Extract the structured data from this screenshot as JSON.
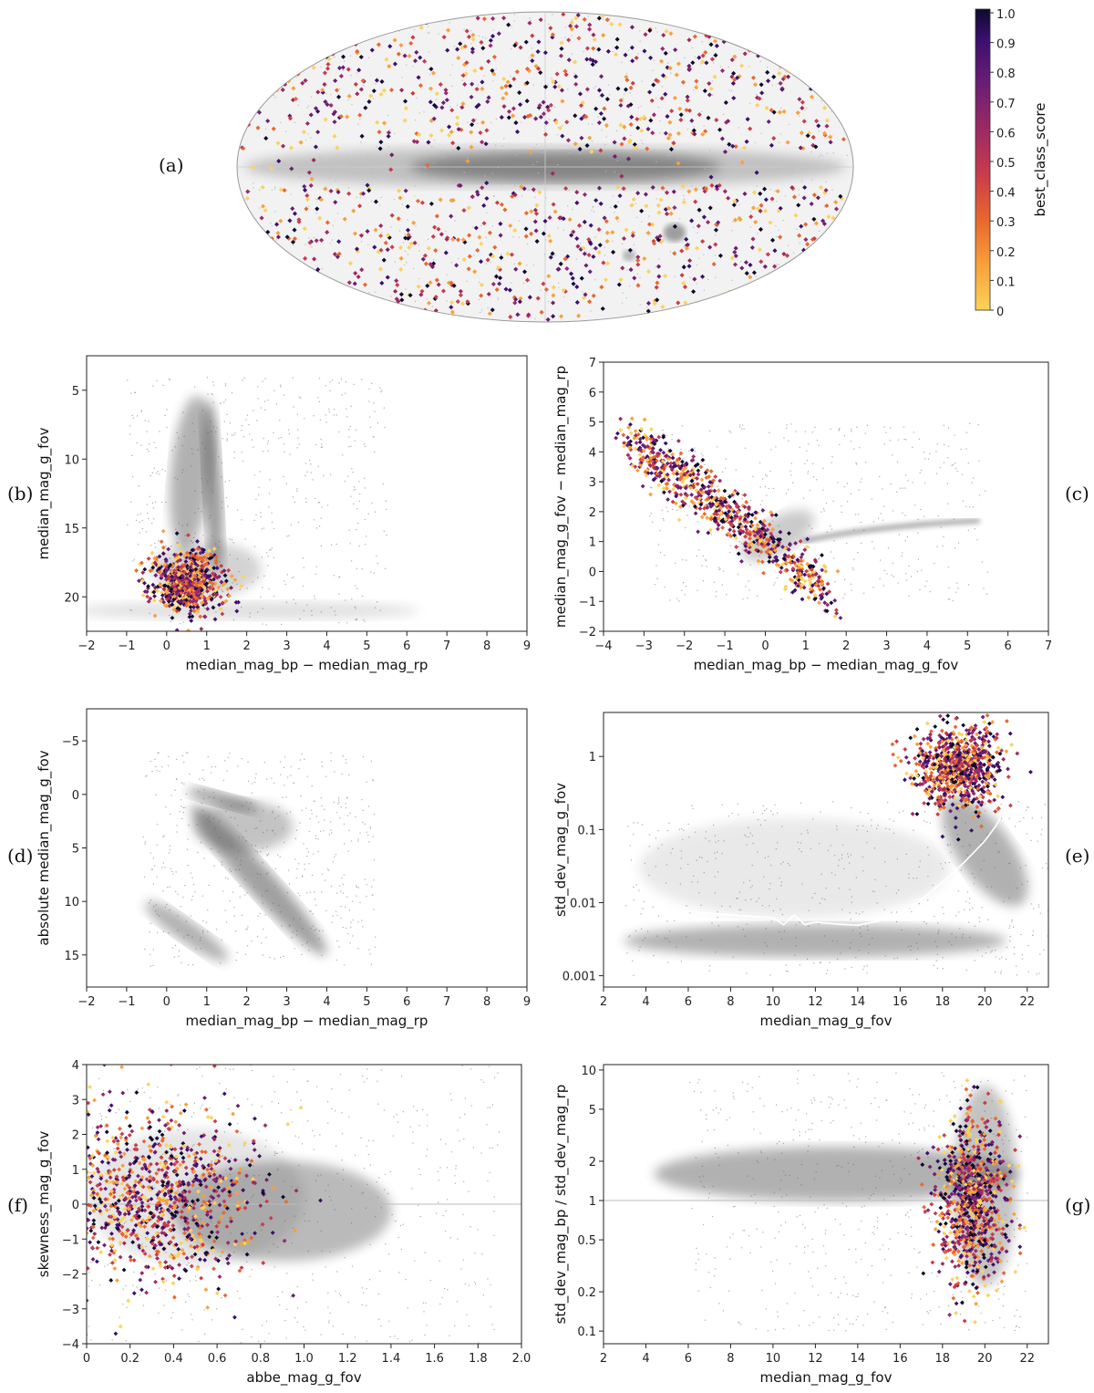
{
  "figure": {
    "panels": [
      {
        "id": "a",
        "label": "(a)"
      },
      {
        "id": "b",
        "label": "(b)"
      },
      {
        "id": "c",
        "label": "(c)"
      },
      {
        "id": "d",
        "label": "(d)"
      },
      {
        "id": "e",
        "label": "(e)"
      },
      {
        "id": "f",
        "label": "(f)"
      },
      {
        "id": "g",
        "label": "(g)"
      }
    ]
  },
  "chart_data": [
    {
      "panel": "a",
      "type": "scatter",
      "title": "",
      "projection": "mollweide all-sky",
      "colorbar": {
        "label": "best_class_score",
        "ticks": [
          "1.0",
          "0.9",
          "0.8",
          "0.7",
          "0.6",
          "0.5",
          "0.4",
          "0.3",
          "0.2",
          "0.1",
          "0"
        ],
        "range": [
          0,
          1
        ]
      },
      "background": "grey density of all sources (Milky Way band)",
      "series": [
        {
          "name": "candidates",
          "color_by": "best_class_score"
        }
      ]
    },
    {
      "panel": "b",
      "type": "scatter",
      "xlabel": "median_mag_bp − median_mag_rp",
      "ylabel": "median_mag_g_fov",
      "xlim": [
        -2,
        9
      ],
      "ylim": [
        22.5,
        2.5
      ],
      "xticks": [
        -2,
        -1,
        0,
        1,
        2,
        3,
        4,
        5,
        6,
        7,
        8,
        9
      ],
      "yticks": [
        5,
        10,
        15,
        20
      ],
      "series": [
        {
          "name": "candidates",
          "cluster": {
            "x": [
              -1,
              2
            ],
            "y": [
              15.5,
              21.5
            ]
          }
        }
      ]
    },
    {
      "panel": "c",
      "type": "scatter",
      "xlabel": "median_mag_bp − median_mag_g_fov",
      "ylabel": "median_mag_g_fov − median_mag_rp",
      "xlim": [
        -4,
        7
      ],
      "ylim": [
        -2,
        7
      ],
      "xticks": [
        -4,
        -3,
        -2,
        -1,
        0,
        1,
        2,
        3,
        4,
        5,
        6,
        7
      ],
      "yticks": [
        -2,
        -1,
        0,
        1,
        2,
        3,
        4,
        5,
        6,
        7
      ],
      "series": [
        {
          "name": "candidates",
          "trend": "anti-correlated band from (-3.3,4.3) to (1.5,-0.5)"
        }
      ]
    },
    {
      "panel": "d",
      "type": "scatter",
      "xlabel": "median_mag_bp − median_mag_rp",
      "ylabel": "absolute median_mag_g_fov",
      "xlim": [
        -2,
        9
      ],
      "ylim": [
        18,
        -8
      ],
      "xticks": [
        -2,
        -1,
        0,
        1,
        2,
        3,
        4,
        5,
        6,
        7,
        8,
        9
      ],
      "yticks": [
        -5,
        0,
        5,
        10,
        15
      ],
      "series": [
        {
          "name": "all sources",
          "note": "Hertzsprung-Russell diagram, grey density only"
        }
      ]
    },
    {
      "panel": "e",
      "type": "scatter",
      "xlabel": "median_mag_g_fov",
      "ylabel": "std_dev_mag_g_fov",
      "yscale": "log",
      "xlim": [
        2,
        23
      ],
      "ylim": [
        0.0007,
        4
      ],
      "xticks": [
        2,
        4,
        6,
        8,
        10,
        12,
        14,
        16,
        18,
        20,
        22
      ],
      "yticks": [
        "0.001",
        "0.01",
        "0.1",
        "1"
      ],
      "median_curve": {
        "x": [
          6,
          8,
          10,
          10.5,
          11,
          11.5,
          12,
          13,
          14,
          15,
          16,
          17,
          18,
          19,
          20,
          20.5,
          21,
          21.5,
          22,
          23
        ],
        "y": [
          0.0075,
          0.0068,
          0.0062,
          0.005,
          0.0068,
          0.005,
          0.0054,
          0.0051,
          0.0049,
          0.0056,
          0.0072,
          0.011,
          0.019,
          0.035,
          0.07,
          0.11,
          0.2,
          0.4,
          0.7,
          0.75
        ]
      },
      "series": [
        {
          "name": "candidates",
          "cluster": {
            "x": [
              15.5,
              22
            ],
            "y": [
              0.06,
              2.5
            ]
          }
        }
      ]
    },
    {
      "panel": "f",
      "type": "scatter",
      "xlabel": "abbe_mag_g_fov",
      "ylabel": "skewness_mag_g_fov",
      "xlim": [
        0,
        2
      ],
      "ylim": [
        -4,
        4
      ],
      "xticks": [
        "0",
        "0.2",
        "0.4",
        "0.6",
        "0.8",
        "1.0",
        "1.2",
        "1.4",
        "1.6",
        "1.8",
        "2.0"
      ],
      "yticks": [
        -4,
        -3,
        -2,
        -1,
        0,
        1,
        2,
        3,
        4
      ],
      "reference_line": {
        "y": 0
      },
      "series": [
        {
          "name": "candidates",
          "cluster": {
            "x": [
              0,
              0.95
            ],
            "y": [
              -4,
              4
            ]
          }
        }
      ]
    },
    {
      "panel": "g",
      "type": "scatter",
      "xlabel": "median_mag_g_fov",
      "ylabel": "std_dev_mag_bp / std_dev_mag_rp",
      "yscale": "log",
      "xlim": [
        2,
        23
      ],
      "ylim": [
        0.08,
        11
      ],
      "xticks": [
        2,
        4,
        6,
        8,
        10,
        12,
        14,
        16,
        18,
        20,
        22
      ],
      "yticks": [
        "0.1",
        "0.2",
        "0.5",
        "1",
        "2",
        "5",
        "10"
      ],
      "reference_line": {
        "y": 1
      },
      "series": [
        {
          "name": "candidates",
          "cluster": {
            "x": [
              17,
              21.5
            ],
            "y": [
              0.09,
              10
            ]
          }
        }
      ]
    }
  ],
  "palette": {
    "background_density": "#555555",
    "ref_line": "#bbbbbb",
    "colormap": [
      "#fcd25a",
      "#f8a13a",
      "#e8672e",
      "#c93c4a",
      "#9c2965",
      "#6c1e74",
      "#3b0f6e",
      "#0e0a2c"
    ]
  }
}
